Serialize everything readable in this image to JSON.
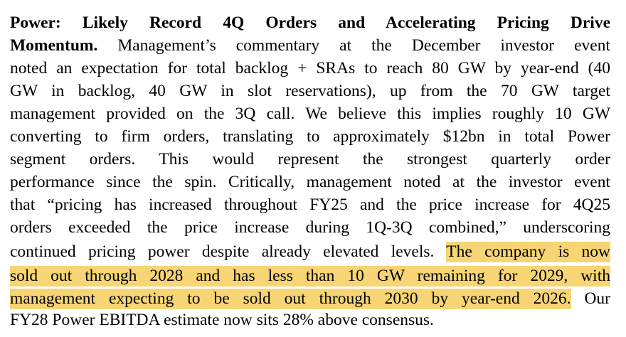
{
  "paragraph": {
    "heading_line_1": "Power: Likely Record 4Q Orders and Accelerating Pricing Drive",
    "heading_line_2": "Momentum.",
    "line_2_rest": " Management’s commentary at the December investor event",
    "line_3": "noted an expectation for total backlog + SRAs to reach 80 GW by year-end (40",
    "line_4": "GW in backlog, 40 GW in slot reservations), up from the 70 GW target",
    "line_5": "management provided on the 3Q call. We believe this implies roughly 10 GW",
    "line_6": "converting to firm orders, translating to approximately $12bn in total Power",
    "line_7": "segment orders. This would represent the strongest quarterly order",
    "line_8": "performance since the spin. Critically, management noted at the investor event",
    "line_9": "that “pricing has increased throughout FY25 and the price increase for 4Q25",
    "line_10": "orders exceeded the price increase during 1Q-3Q combined,” underscoring",
    "line_11_plain": "continued pricing power despite already elevated levels. ",
    "line_11_highlight": "The company is now",
    "line_12_highlight": "sold out through 2028 and has less than 10 GW remaining for 2029, with",
    "line_13_highlight": "management expecting to be sold out through 2030 by year-end 2026.",
    "line_13_plain": " Our",
    "line_14": "FY28 Power EBITDA estimate now sits 28% above consensus."
  },
  "colors": {
    "highlight": "#f7d574",
    "text": "#000000",
    "background": "#ffffff"
  }
}
